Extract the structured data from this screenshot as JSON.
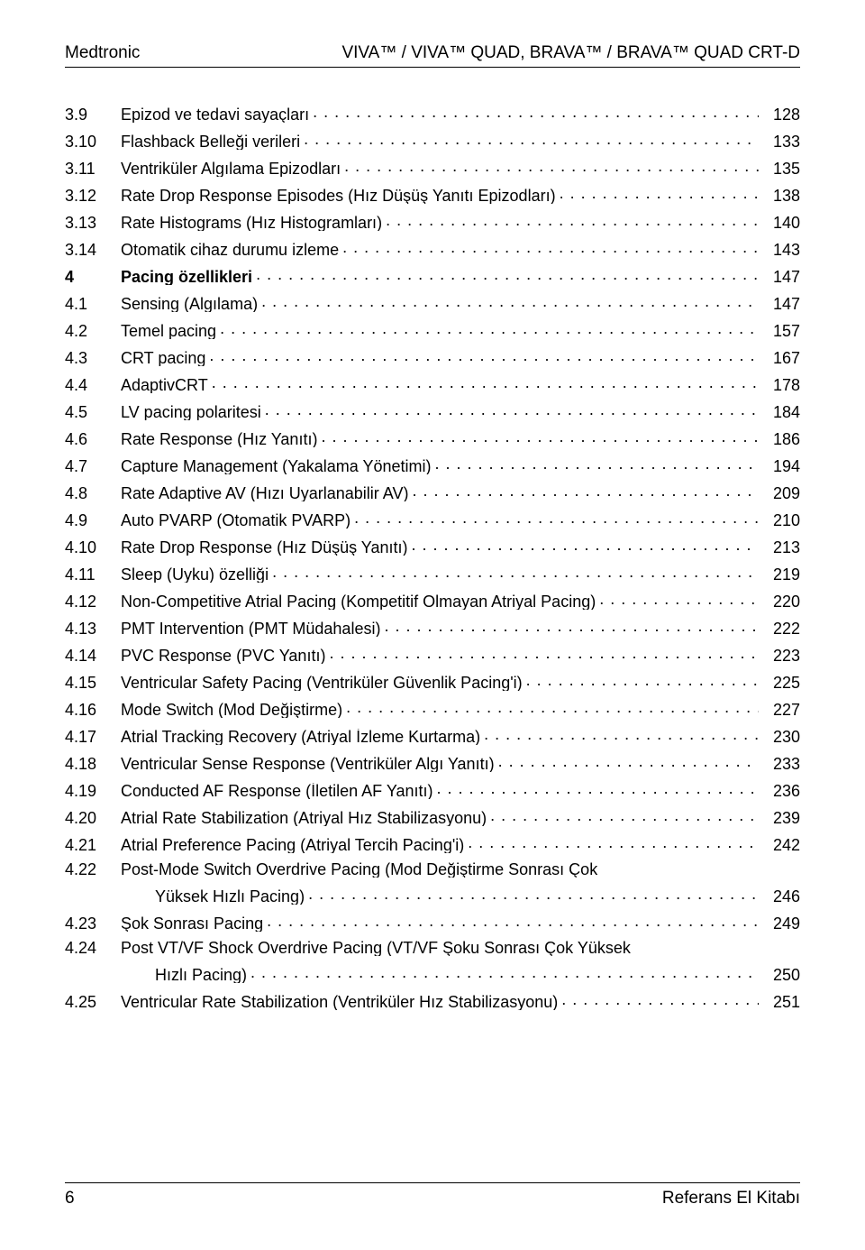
{
  "header": {
    "left": "Medtronic",
    "right": "VIVA™ / VIVA™ QUAD, BRAVA™ / BRAVA™ QUAD CRT-D"
  },
  "footer": {
    "page_number": "6",
    "book_title": "Referans El Kitabı"
  },
  "toc": [
    {
      "num": "3.9",
      "title": "Epizod ve tedavi sayaçları",
      "page": "128"
    },
    {
      "num": "3.10",
      "title": "Flashback Belleği verileri",
      "page": "133"
    },
    {
      "num": "3.11",
      "title": "Ventriküler Algılama Epizodları",
      "page": "135"
    },
    {
      "num": "3.12",
      "title": "Rate Drop Response Episodes (Hız Düşüş Yanıtı Epizodları)",
      "page": "138"
    },
    {
      "num": "3.13",
      "title": "Rate Histograms (Hız Histogramları)",
      "page": "140"
    },
    {
      "num": "3.14",
      "title": "Otomatik cihaz durumu izleme",
      "page": "143"
    },
    {
      "num": "4",
      "title": "Pacing özellikleri",
      "page": "147",
      "chapter": true
    },
    {
      "num": "4.1",
      "title": "Sensing (Algılama)",
      "page": "147"
    },
    {
      "num": "4.2",
      "title": "Temel pacing",
      "page": "157"
    },
    {
      "num": "4.3",
      "title": "CRT pacing",
      "page": "167"
    },
    {
      "num": "4.4",
      "title": "AdaptivCRT",
      "page": "178"
    },
    {
      "num": "4.5",
      "title": "LV pacing polaritesi",
      "page": "184"
    },
    {
      "num": "4.6",
      "title": "Rate Response (Hız Yanıtı)",
      "page": "186"
    },
    {
      "num": "4.7",
      "title": "Capture Management (Yakalama Yönetimi)",
      "page": "194"
    },
    {
      "num": "4.8",
      "title": "Rate Adaptive AV (Hızı Uyarlanabilir AV)",
      "page": "209"
    },
    {
      "num": "4.9",
      "title": "Auto PVARP (Otomatik PVARP)",
      "page": "210"
    },
    {
      "num": "4.10",
      "title": "Rate Drop Response (Hız Düşüş Yanıtı)",
      "page": "213"
    },
    {
      "num": "4.11",
      "title": "Sleep (Uyku) özelliği",
      "page": "219"
    },
    {
      "num": "4.12",
      "title": "Non-Competitive Atrial Pacing (Kompetitif Olmayan Atriyal Pacing)",
      "page": "220"
    },
    {
      "num": "4.13",
      "title": "PMT Intervention (PMT Müdahalesi)",
      "page": "222"
    },
    {
      "num": "4.14",
      "title": "PVC Response (PVC Yanıtı)",
      "page": "223"
    },
    {
      "num": "4.15",
      "title": "Ventricular Safety Pacing (Ventriküler Güvenlik Pacing'i)",
      "page": "225"
    },
    {
      "num": "4.16",
      "title": "Mode Switch (Mod Değiştirme)",
      "page": "227"
    },
    {
      "num": "4.17",
      "title": "Atrial Tracking Recovery (Atriyal İzleme Kurtarma)",
      "page": "230"
    },
    {
      "num": "4.18",
      "title": "Ventricular Sense Response (Ventriküler Algı Yanıtı)",
      "page": "233"
    },
    {
      "num": "4.19",
      "title": "Conducted AF Response (İletilen AF Yanıtı)",
      "page": "236"
    },
    {
      "num": "4.20",
      "title": "Atrial Rate Stabilization (Atriyal Hız Stabilizasyonu)",
      "page": "239"
    },
    {
      "num": "4.21",
      "title": "Atrial Preference Pacing (Atriyal Tercih Pacing'i)",
      "page": "242"
    },
    {
      "num": "4.22",
      "title": "Post-Mode Switch Overdrive Pacing (Mod Değiştirme Sonrası Çok",
      "cont": "Yüksek Hızlı Pacing)",
      "page": "246"
    },
    {
      "num": "4.23",
      "title": "Şok Sonrası Pacing",
      "page": "249"
    },
    {
      "num": "4.24",
      "title": "Post VT/VF Shock Overdrive Pacing (VT/VF Şoku Sonrası Çok Yüksek",
      "cont": "Hızlı Pacing)",
      "page": "250"
    },
    {
      "num": "4.25",
      "title": "Ventricular Rate Stabilization (Ventriküler Hız Stabilizasyonu)",
      "page": "251"
    }
  ]
}
